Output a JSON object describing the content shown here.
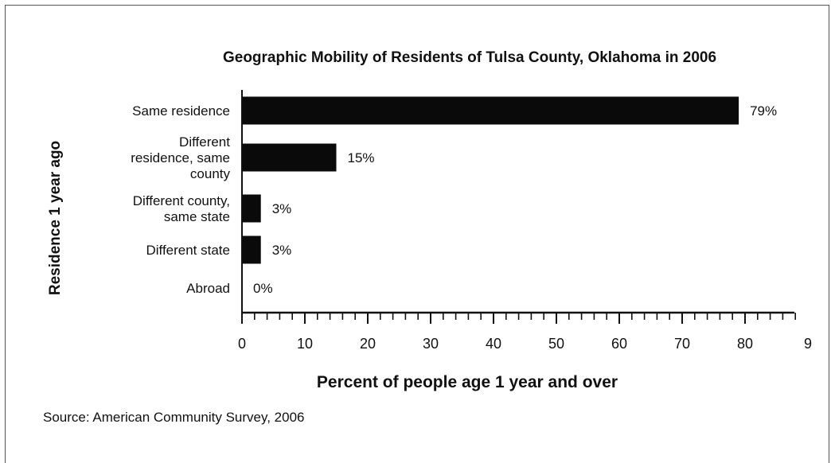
{
  "chart_data": {
    "type": "bar",
    "orientation": "horizontal",
    "title": "Geographic Mobility of Residents of Tulsa County, Oklahoma in 2006",
    "xlabel": "Percent of people age 1 year and over",
    "ylabel": "Residence 1 year ago",
    "categories": [
      [
        "Same residence"
      ],
      [
        "Different",
        "residence, same",
        "county"
      ],
      [
        "Different county,",
        "same state"
      ],
      [
        "Different state"
      ],
      [
        "Abroad"
      ]
    ],
    "values": [
      79,
      15,
      3,
      3,
      0
    ],
    "data_labels": [
      "79%",
      "15%",
      "3%",
      "3%",
      "0%"
    ],
    "xlim": [
      0,
      88
    ],
    "x_ticks": [
      "0",
      "10",
      "20",
      "30",
      "40",
      "50",
      "60",
      "70",
      "80",
      "9"
    ],
    "minor_tick_step": 2,
    "grid": false,
    "bar_color": "#0a0a0a",
    "source": "Source: American Community Survey, 2006"
  }
}
